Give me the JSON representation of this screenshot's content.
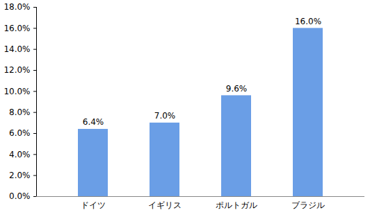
{
  "chart_data": {
    "type": "bar",
    "categories": [
      "ドイツ",
      "イギリス",
      "ポルトガル",
      "ブラジル"
    ],
    "values": [
      6.4,
      7.0,
      9.6,
      16.0
    ],
    "value_labels": [
      "6.4%",
      "7.0%",
      "9.6%",
      "16.0%"
    ],
    "data_labels": true,
    "color": "#6a9ee6",
    "ylim": [
      0,
      18
    ],
    "yticks": [
      {
        "value": 0,
        "label": "0.0%"
      },
      {
        "value": 2,
        "label": "2.0%"
      },
      {
        "value": 4,
        "label": "4.0%"
      },
      {
        "value": 6,
        "label": "6.0%"
      },
      {
        "value": 8,
        "label": "8.0%"
      },
      {
        "value": 10,
        "label": "10.0%"
      },
      {
        "value": 12,
        "label": "12.0%"
      },
      {
        "value": 14,
        "label": "14.0%"
      },
      {
        "value": 16,
        "label": "16.0%"
      },
      {
        "value": 18,
        "label": "18.0%"
      }
    ],
    "grid": false
  }
}
